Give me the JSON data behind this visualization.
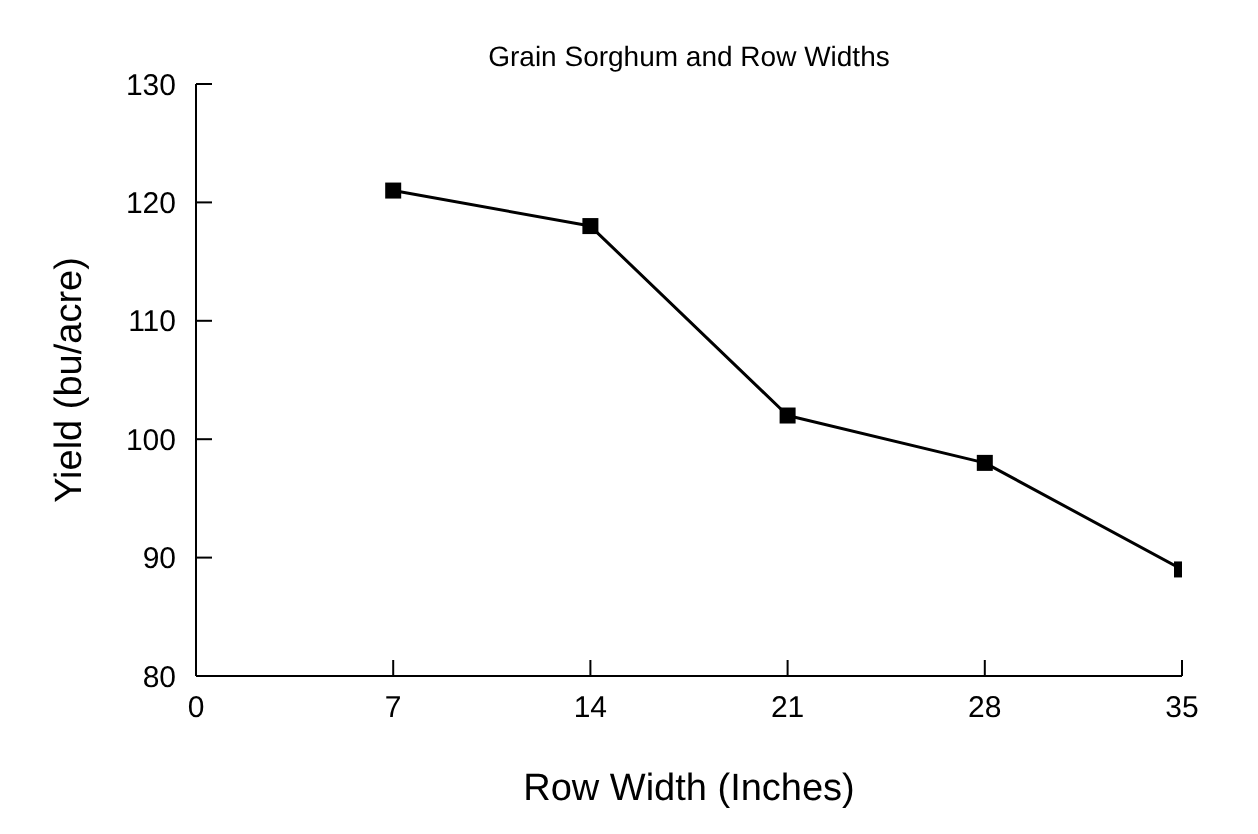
{
  "chart_data": {
    "type": "line",
    "title": "Grain Sorghum and Row Widths",
    "xlabel": "Row Width (Inches)",
    "ylabel": "Yield (bu/acre)",
    "x": [
      7,
      14,
      21,
      28,
      35
    ],
    "series": [
      {
        "color": "#000000",
        "values": [
          121,
          118,
          102,
          98,
          89
        ]
      }
    ],
    "xlim": [
      0,
      35
    ],
    "xticks": [
      0,
      7,
      14,
      21,
      28,
      35
    ],
    "ylim": [
      80,
      130
    ],
    "yticks": [
      80,
      90,
      100,
      110,
      120,
      130
    ],
    "grid": false,
    "legend": false,
    "marker": "square",
    "line_style": "solid"
  }
}
